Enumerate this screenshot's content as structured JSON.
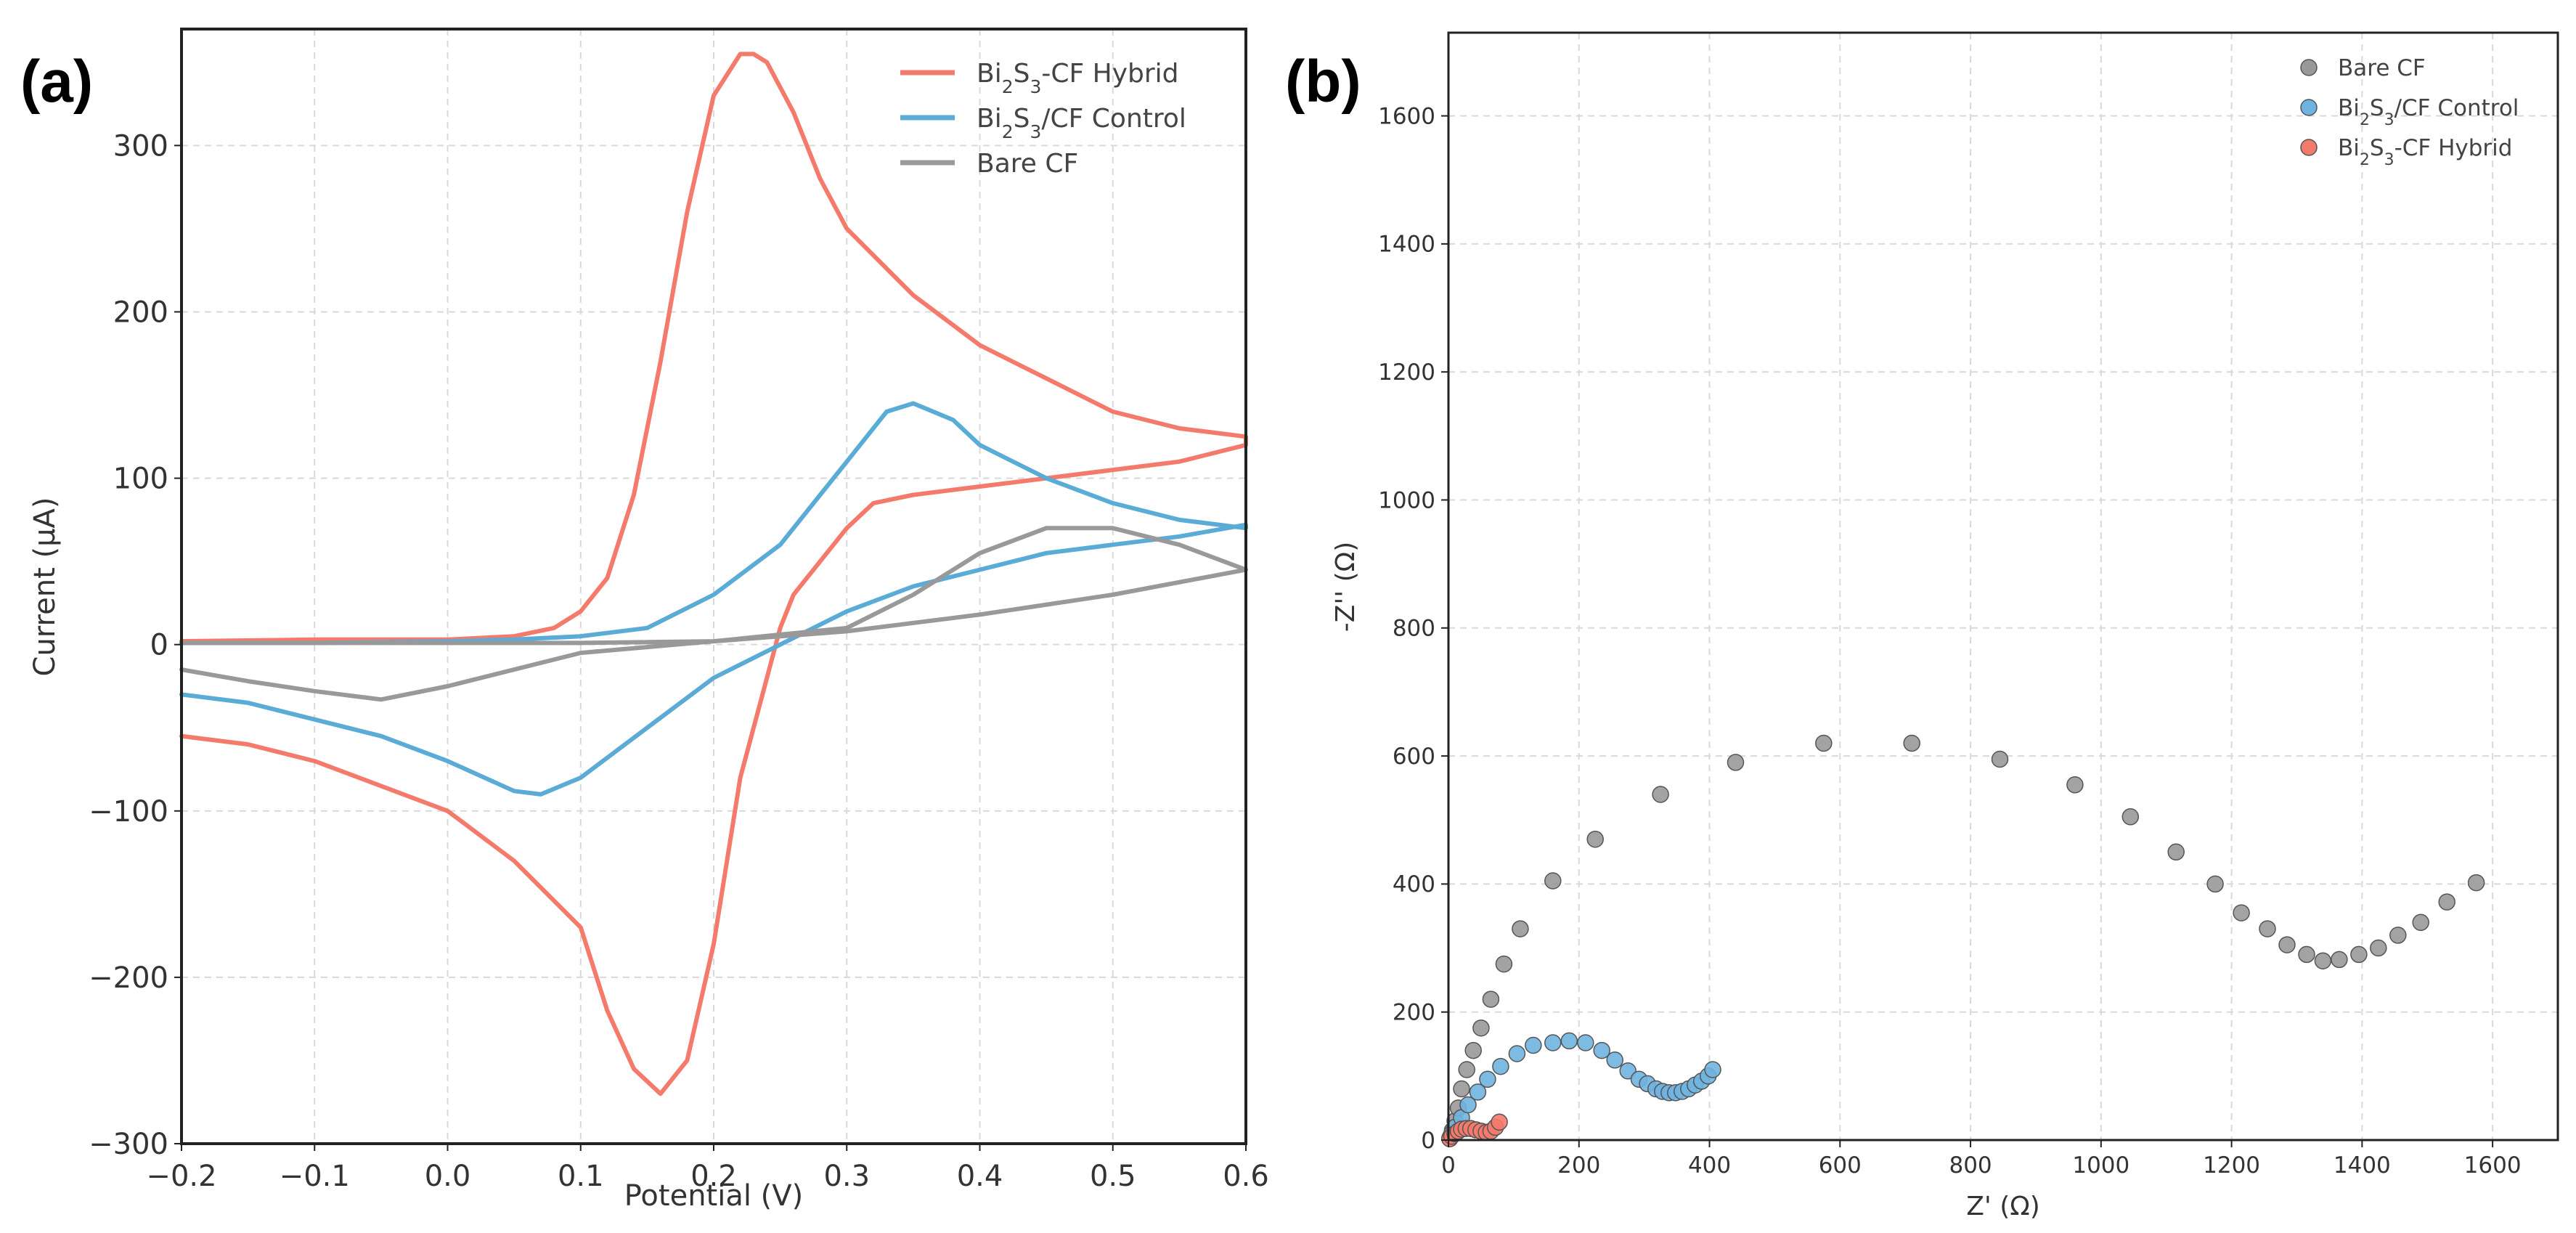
{
  "panel_a_label": "(a)",
  "panel_b_label": "(b)",
  "chart_data": [
    {
      "type": "line",
      "xlabel": "Potential (V)",
      "ylabel": "Current (μA)",
      "xlim": [
        -0.2,
        0.6
      ],
      "ylim": [
        -300,
        370
      ],
      "xticks": [
        "−0.2",
        "−0.1",
        "0.0",
        "0.1",
        "0.2",
        "0.3",
        "0.4",
        "0.5",
        "0.6"
      ],
      "xtick_values": [
        -0.2,
        -0.1,
        0.0,
        0.1,
        0.2,
        0.3,
        0.4,
        0.5,
        0.6
      ],
      "yticks": [
        "−300",
        "−200",
        "−100",
        "0",
        "100",
        "200",
        "300"
      ],
      "ytick_values": [
        -300,
        -200,
        -100,
        0,
        100,
        200,
        300
      ],
      "grid": true,
      "legend_position": "top-right",
      "legend": [
        {
          "pre": "Bi",
          "s1": "2",
          "mid": "S",
          "s2": "3",
          "post": "-CF Hybrid",
          "color": "#f47a6c"
        },
        {
          "pre": "Bi",
          "s1": "2",
          "mid": "S",
          "s2": "3",
          "post": "/CF Control",
          "color": "#5aabd6"
        },
        {
          "pre": "",
          "s1": "",
          "mid": "",
          "s2": "",
          "post": "Bare CF",
          "color": "#999999"
        }
      ],
      "series": [
        {
          "color": "#f47a6c",
          "x": [
            -0.2,
            -0.1,
            0.0,
            0.05,
            0.08,
            0.1,
            0.12,
            0.14,
            0.16,
            0.18,
            0.2,
            0.22,
            0.23,
            0.24,
            0.26,
            0.28,
            0.3,
            0.35,
            0.4,
            0.45,
            0.5,
            0.55,
            0.6,
            0.6,
            0.55,
            0.5,
            0.45,
            0.4,
            0.35,
            0.32,
            0.3,
            0.28,
            0.26,
            0.25,
            0.24,
            0.22,
            0.2,
            0.18,
            0.16,
            0.14,
            0.12,
            0.1,
            0.05,
            0.0,
            -0.05,
            -0.1,
            -0.15,
            -0.2
          ],
          "y": [
            2,
            3,
            3,
            5,
            10,
            20,
            40,
            90,
            170,
            260,
            330,
            355,
            355,
            350,
            320,
            280,
            250,
            210,
            180,
            160,
            140,
            130,
            125,
            120,
            110,
            105,
            100,
            95,
            90,
            85,
            70,
            50,
            30,
            10,
            -20,
            -80,
            -180,
            -250,
            -270,
            -255,
            -220,
            -170,
            -130,
            -100,
            -85,
            -70,
            -60,
            -55
          ]
        },
        {
          "color": "#5aabd6",
          "x": [
            -0.2,
            -0.1,
            0.0,
            0.05,
            0.1,
            0.15,
            0.2,
            0.25,
            0.3,
            0.33,
            0.35,
            0.38,
            0.4,
            0.45,
            0.5,
            0.55,
            0.6,
            0.6,
            0.55,
            0.5,
            0.45,
            0.4,
            0.35,
            0.3,
            0.25,
            0.2,
            0.15,
            0.1,
            0.07,
            0.05,
            0.0,
            -0.05,
            -0.1,
            -0.15,
            -0.2
          ],
          "y": [
            1,
            1,
            2,
            3,
            5,
            10,
            30,
            60,
            110,
            140,
            145,
            135,
            120,
            100,
            85,
            75,
            70,
            72,
            65,
            60,
            55,
            45,
            35,
            20,
            0,
            -20,
            -50,
            -80,
            -90,
            -88,
            -70,
            -55,
            -45,
            -35,
            -30
          ]
        },
        {
          "color": "#999999",
          "x": [
            -0.2,
            -0.1,
            0.0,
            0.1,
            0.2,
            0.3,
            0.35,
            0.4,
            0.45,
            0.5,
            0.55,
            0.6,
            0.6,
            0.5,
            0.4,
            0.3,
            0.2,
            0.1,
            0.0,
            -0.05,
            -0.1,
            -0.15,
            -0.2
          ],
          "y": [
            1,
            1,
            1,
            1,
            2,
            10,
            30,
            55,
            70,
            70,
            60,
            45,
            45,
            30,
            18,
            8,
            2,
            -5,
            -25,
            -33,
            -28,
            -22,
            -15
          ]
        }
      ]
    },
    {
      "type": "scatter",
      "xlabel": "Z' (Ω)",
      "ylabel": "-Z'' (Ω)",
      "xlim": [
        0,
        1700
      ],
      "ylim": [
        0,
        1730
      ],
      "xticks": [
        "0",
        "200",
        "400",
        "600",
        "800",
        "1000",
        "1200",
        "1400",
        "1600"
      ],
      "xtick_values": [
        0,
        200,
        400,
        600,
        800,
        1000,
        1200,
        1400,
        1600
      ],
      "yticks": [
        "0",
        "200",
        "400",
        "600",
        "800",
        "1000",
        "1200",
        "1400",
        "1600"
      ],
      "ytick_values": [
        0,
        200,
        400,
        600,
        800,
        1000,
        1200,
        1400,
        1600
      ],
      "grid": true,
      "legend_position": "top-right",
      "legend": [
        {
          "pre": "",
          "s1": "",
          "mid": "",
          "s2": "",
          "post": "Bare CF",
          "color": "#999999"
        },
        {
          "pre": "Bi",
          "s1": "2",
          "mid": "S",
          "s2": "3",
          "post": "/CF Control",
          "color": "#6fb4e0"
        },
        {
          "pre": "Bi",
          "s1": "2",
          "mid": "S",
          "s2": "3",
          "post": "-CF Hybrid",
          "color": "#f47a6c"
        }
      ],
      "series": [
        {
          "color": "#999999",
          "x": [
            3,
            6,
            10,
            15,
            20,
            28,
            38,
            50,
            65,
            85,
            110,
            160,
            225,
            325,
            440,
            575,
            710,
            845,
            960,
            1045,
            1115,
            1175,
            1215,
            1255,
            1285,
            1315,
            1340,
            1365,
            1395,
            1425,
            1455,
            1490,
            1530,
            1575
          ],
          "y": [
            5,
            15,
            30,
            50,
            80,
            110,
            140,
            175,
            220,
            275,
            330,
            405,
            470,
            540,
            590,
            620,
            620,
            595,
            555,
            505,
            450,
            400,
            355,
            330,
            305,
            290,
            280,
            282,
            290,
            300,
            320,
            340,
            372,
            402
          ]
        },
        {
          "color": "#6fb4e0",
          "x": [
            2,
            5,
            10,
            20,
            30,
            45,
            60,
            80,
            105,
            130,
            160,
            185,
            210,
            235,
            255,
            275,
            292,
            305,
            318,
            328,
            338,
            348,
            358,
            368,
            378,
            388,
            398,
            405
          ],
          "y": [
            3,
            10,
            20,
            35,
            55,
            75,
            95,
            115,
            135,
            148,
            152,
            155,
            152,
            140,
            125,
            108,
            95,
            88,
            80,
            76,
            74,
            74,
            76,
            80,
            86,
            92,
            100,
            110
          ]
        },
        {
          "color": "#f47a6c",
          "x": [
            2,
            5,
            10,
            15,
            20,
            27,
            34,
            42,
            50,
            58,
            65,
            72,
            78
          ],
          "y": [
            2,
            6,
            10,
            14,
            17,
            18,
            18,
            16,
            14,
            12,
            14,
            20,
            28
          ]
        }
      ]
    }
  ]
}
